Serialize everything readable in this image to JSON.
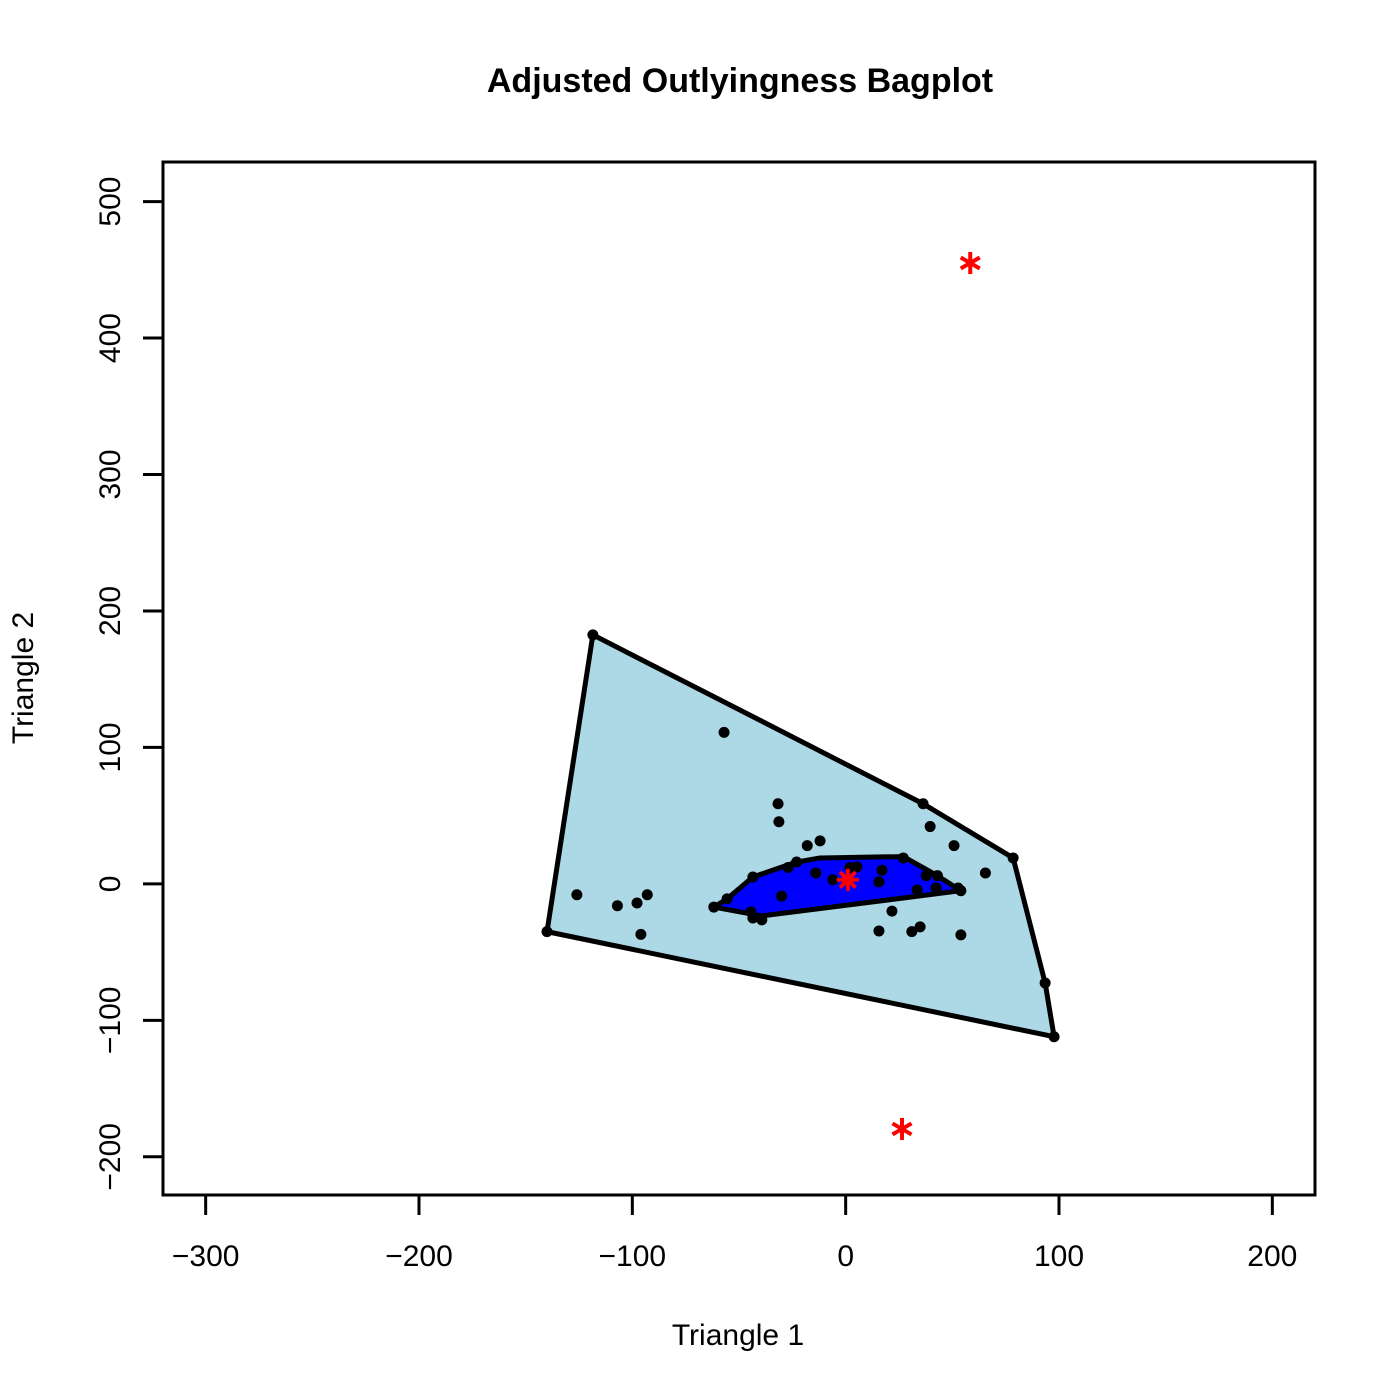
{
  "chart_data": {
    "type": "bagplot",
    "title": "Adjusted Outlyingness Bagplot",
    "xlabel": "Triangle 1",
    "ylabel": "Triangle 2",
    "xlim": [
      -320,
      220
    ],
    "ylim": [
      -228,
      529
    ],
    "xticks": [
      {
        "value": -300,
        "label": "−300"
      },
      {
        "value": -200,
        "label": "−200"
      },
      {
        "value": -100,
        "label": "−100"
      },
      0,
      100,
      200
    ],
    "yticks": [
      {
        "value": -200,
        "label": "−200"
      },
      {
        "value": -100,
        "label": "−100"
      },
      0,
      100,
      200,
      300,
      400,
      500
    ],
    "loop": {
      "color": "#add8e6",
      "x": [
        -118.5,
        36.3,
        78.5,
        93.5,
        97.7,
        -140
      ],
      "y": [
        182.5,
        58.7,
        19,
        -72.6,
        -112,
        -35
      ]
    },
    "bag": {
      "color": "#0000ff",
      "x": [
        -61.8,
        -55.6,
        -43.5,
        -23,
        -12,
        27,
        43,
        54,
        -39.3
      ],
      "y": [
        -17,
        -11,
        5,
        16,
        19,
        20,
        6,
        -5,
        -23.5
      ]
    },
    "points": {
      "color": "#000000",
      "x": [
        -118.5,
        -140,
        36.3,
        78.5,
        93.5,
        97.7,
        -126,
        -107,
        -97.8,
        -93,
        -96,
        -57,
        -31.7,
        -31.3,
        -12,
        -18,
        -23,
        -27,
        -14,
        -6,
        -43.5,
        -55.6,
        -61.8,
        -44.4,
        -43.5,
        -39.3,
        -30,
        2,
        5.3,
        27,
        17,
        15.6,
        21.7,
        15.6,
        31,
        34.9,
        39.6,
        50.8,
        65.5,
        37.8,
        43,
        33.5,
        42.4,
        52.7,
        54,
        54
      ],
      "y": [
        182.5,
        -35,
        58.7,
        19,
        -72.6,
        -112,
        -8,
        -16,
        -14,
        -8,
        -37,
        111,
        58.7,
        45.5,
        31.5,
        28,
        16,
        12,
        8,
        3,
        5,
        -11,
        -17,
        -20.5,
        -25,
        -26.4,
        -9,
        12,
        12.5,
        19,
        10,
        1.5,
        -20,
        -34.5,
        -35,
        -31.5,
        42,
        28,
        8,
        6,
        6,
        -4.4,
        -3,
        -3,
        -5,
        -37.4
      ]
    },
    "outliers": {
      "color": "#ff0000",
      "x": [
        58.4,
        26.4
      ],
      "y": [
        455,
        -179.6
      ]
    },
    "center": {
      "color": "#ff0000",
      "x": [
        1
      ],
      "y": [
        3
      ]
    }
  }
}
